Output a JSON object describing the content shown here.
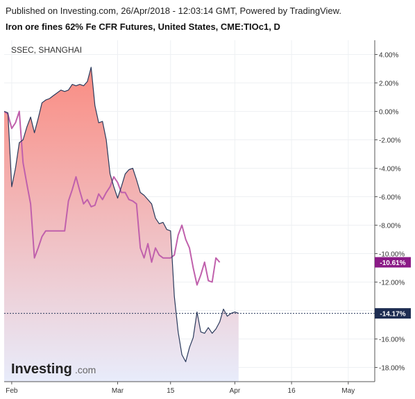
{
  "header": {
    "published": "Published on Investing.com, 26/Apr/2018 - 12:03:14 GMT, Powered by TradingView.",
    "title": "Iron ore fines 62% Fe CFR Futures, United States, CME:TIOc1, D"
  },
  "legend": {
    "comparison": "SSEC, SHANGHAI"
  },
  "logo": {
    "main": "Investing",
    "suffix": ".com"
  },
  "colors": {
    "main_line": "#2a3a5c",
    "area_top": "#fa8c82",
    "area_bottom": "#e8ecfb",
    "comparison_line": "#c060ac",
    "badge_main": "#1e2d52",
    "badge_comparison": "#8a1a86"
  },
  "chart_data": {
    "type": "line",
    "title": "Iron ore fines 62% Fe CFR Futures, United States, CME:TIOc1, D",
    "y_unit": "%",
    "ylim": [
      -19,
      5
    ],
    "y_ticks": [
      "4.00%",
      "2.00%",
      "0.00%",
      "-2.00%",
      "-4.00%",
      "-6.00%",
      "-8.00%",
      "-10.00%",
      "-12.00%",
      "-14.00%",
      "-16.00%",
      "-18.00%"
    ],
    "y_tick_values": [
      4,
      2,
      0,
      -2,
      -4,
      -6,
      -8,
      -10,
      -12,
      -14,
      -16,
      -18
    ],
    "x_ticks": [
      {
        "label": "Feb",
        "date": "2018-02-01"
      },
      {
        "label": "Mar",
        "date": "2018-03-01"
      },
      {
        "label": "15",
        "date": "2018-03-15"
      },
      {
        "label": "Apr",
        "date": "2018-04-01"
      },
      {
        "label": "16",
        "date": "2018-04-16"
      },
      {
        "label": "May",
        "date": "2018-05-01"
      }
    ],
    "xlim": [
      "2018-01-30",
      "2018-05-08"
    ],
    "grid": true,
    "series": [
      {
        "name": "Iron ore fines 62% Fe CFR Futures",
        "style": "area",
        "last_value_label": "-14.17%",
        "points": [
          [
            "2018-01-30",
            0.0
          ],
          [
            "2018-01-31",
            -0.1
          ],
          [
            "2018-02-01",
            -5.3
          ],
          [
            "2018-02-02",
            -4.0
          ],
          [
            "2018-02-03",
            -2.2
          ],
          [
            "2018-02-04",
            -2.0
          ],
          [
            "2018-02-05",
            -1.1
          ],
          [
            "2018-02-06",
            -0.4
          ],
          [
            "2018-02-07",
            -1.5
          ],
          [
            "2018-02-08",
            -0.5
          ],
          [
            "2018-02-09",
            0.6
          ],
          [
            "2018-02-10",
            0.8
          ],
          [
            "2018-02-11",
            0.9
          ],
          [
            "2018-02-12",
            1.1
          ],
          [
            "2018-02-13",
            1.3
          ],
          [
            "2018-02-14",
            1.5
          ],
          [
            "2018-02-15",
            1.4
          ],
          [
            "2018-02-16",
            1.5
          ],
          [
            "2018-02-17",
            1.9
          ],
          [
            "2018-02-18",
            1.8
          ],
          [
            "2018-02-19",
            1.9
          ],
          [
            "2018-02-20",
            1.8
          ],
          [
            "2018-02-21",
            2.1
          ],
          [
            "2018-02-22",
            3.1
          ],
          [
            "2018-02-23",
            0.4
          ],
          [
            "2018-02-24",
            -0.8
          ],
          [
            "2018-02-25",
            -0.7
          ],
          [
            "2018-02-26",
            -2.0
          ],
          [
            "2018-02-27",
            -4.4
          ],
          [
            "2018-02-28",
            -5.3
          ],
          [
            "2018-03-01",
            -6.1
          ],
          [
            "2018-03-02",
            -5.3
          ],
          [
            "2018-03-03",
            -4.4
          ],
          [
            "2018-03-04",
            -4.1
          ],
          [
            "2018-03-05",
            -4.0
          ],
          [
            "2018-03-06",
            -4.8
          ],
          [
            "2018-03-07",
            -5.7
          ],
          [
            "2018-03-08",
            -5.9
          ],
          [
            "2018-03-09",
            -6.2
          ],
          [
            "2018-03-10",
            -6.5
          ],
          [
            "2018-03-11",
            -7.5
          ],
          [
            "2018-03-12",
            -7.9
          ],
          [
            "2018-03-13",
            -7.8
          ],
          [
            "2018-03-14",
            -8.3
          ],
          [
            "2018-03-15",
            -8.4
          ],
          [
            "2018-03-16",
            -13.0
          ],
          [
            "2018-03-17",
            -15.5
          ],
          [
            "2018-03-18",
            -17.1
          ],
          [
            "2018-03-19",
            -17.6
          ],
          [
            "2018-03-20",
            -16.6
          ],
          [
            "2018-03-21",
            -15.9
          ],
          [
            "2018-03-22",
            -14.1
          ],
          [
            "2018-03-23",
            -15.5
          ],
          [
            "2018-03-24",
            -15.6
          ],
          [
            "2018-03-25",
            -15.2
          ],
          [
            "2018-03-26",
            -15.6
          ],
          [
            "2018-03-27",
            -15.3
          ],
          [
            "2018-03-28",
            -14.8
          ],
          [
            "2018-03-29",
            -13.9
          ],
          [
            "2018-03-30",
            -14.4
          ],
          [
            "2018-03-31",
            -14.2
          ],
          [
            "2018-04-01",
            -14.1
          ],
          [
            "2018-04-02",
            -14.2
          ]
        ]
      },
      {
        "name": "SSEC, SHANGHAI",
        "style": "line",
        "last_value_label": "-10.61%",
        "points": [
          [
            "2018-01-30",
            0.0
          ],
          [
            "2018-01-31",
            -0.2
          ],
          [
            "2018-02-01",
            -1.2
          ],
          [
            "2018-02-02",
            -0.8
          ],
          [
            "2018-02-03",
            0.0
          ],
          [
            "2018-02-04",
            -3.6
          ],
          [
            "2018-02-05",
            -5.1
          ],
          [
            "2018-02-06",
            -6.5
          ],
          [
            "2018-02-07",
            -10.3
          ],
          [
            "2018-02-08",
            -9.6
          ],
          [
            "2018-02-09",
            -8.8
          ],
          [
            "2018-02-10",
            -8.4
          ],
          [
            "2018-02-11",
            -8.4
          ],
          [
            "2018-02-12",
            -8.4
          ],
          [
            "2018-02-13",
            -8.4
          ],
          [
            "2018-02-14",
            -8.4
          ],
          [
            "2018-02-15",
            -8.4
          ],
          [
            "2018-02-16",
            -6.3
          ],
          [
            "2018-02-17",
            -5.5
          ],
          [
            "2018-02-18",
            -4.6
          ],
          [
            "2018-02-19",
            -5.6
          ],
          [
            "2018-02-20",
            -6.5
          ],
          [
            "2018-02-21",
            -6.2
          ],
          [
            "2018-02-22",
            -6.7
          ],
          [
            "2018-02-23",
            -6.6
          ],
          [
            "2018-02-24",
            -5.8
          ],
          [
            "2018-02-25",
            -6.2
          ],
          [
            "2018-02-26",
            -5.7
          ],
          [
            "2018-02-27",
            -5.3
          ],
          [
            "2018-02-28",
            -4.6
          ],
          [
            "2018-03-01",
            -5.0
          ],
          [
            "2018-03-02",
            -5.7
          ],
          [
            "2018-03-03",
            -5.7
          ],
          [
            "2018-03-04",
            -6.2
          ],
          [
            "2018-03-05",
            -6.3
          ],
          [
            "2018-03-06",
            -6.5
          ],
          [
            "2018-03-07",
            -9.6
          ],
          [
            "2018-03-08",
            -10.3
          ],
          [
            "2018-03-09",
            -9.3
          ],
          [
            "2018-03-10",
            -10.6
          ],
          [
            "2018-03-11",
            -9.6
          ],
          [
            "2018-03-12",
            -10.1
          ],
          [
            "2018-03-13",
            -10.3
          ],
          [
            "2018-03-14",
            -10.3
          ],
          [
            "2018-03-15",
            -10.3
          ],
          [
            "2018-03-16",
            -10.1
          ],
          [
            "2018-03-17",
            -8.7
          ],
          [
            "2018-03-18",
            -8.0
          ],
          [
            "2018-03-19",
            -9.0
          ],
          [
            "2018-03-20",
            -9.6
          ],
          [
            "2018-03-21",
            -11.0
          ],
          [
            "2018-03-22",
            -12.2
          ],
          [
            "2018-03-23",
            -11.5
          ],
          [
            "2018-03-24",
            -10.6
          ],
          [
            "2018-03-25",
            -11.9
          ],
          [
            "2018-03-26",
            -12.0
          ],
          [
            "2018-03-27",
            -10.3
          ],
          [
            "2018-03-28",
            -10.61
          ]
        ]
      }
    ]
  }
}
